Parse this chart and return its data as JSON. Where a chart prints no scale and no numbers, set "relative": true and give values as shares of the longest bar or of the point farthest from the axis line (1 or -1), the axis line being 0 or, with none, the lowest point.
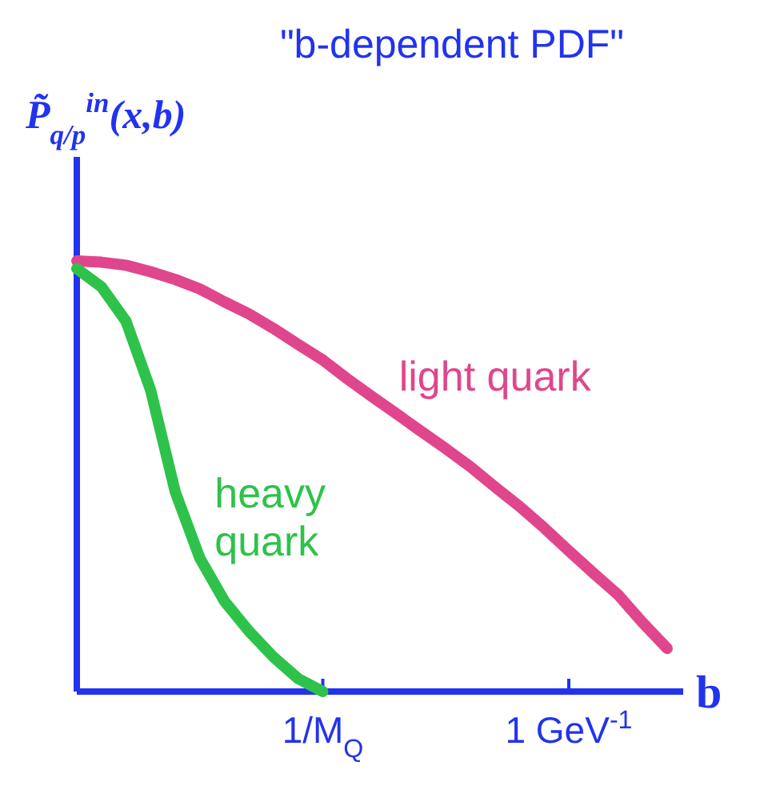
{
  "chart_data": {
    "type": "line",
    "title": "\"b-dependent PDF\"",
    "ylabel": "P̃$_{q/p}$$^{in}$(x,b)",
    "xlabel": "b",
    "relative": true,
    "marker": "none",
    "line_style": "solid",
    "categories": [
      null,
      null,
      null,
      null,
      null,
      null,
      null,
      null,
      null,
      null,
      "1/M$_{Q}$",
      null,
      null,
      null,
      null,
      null,
      null,
      null,
      null,
      null,
      "1 GeV$^{-1}$",
      null,
      null,
      null,
      null
    ],
    "series": [
      {
        "name": "light quark",
        "color": "#e0468c",
        "values": [
          1,
          0.997,
          0.99,
          0.975,
          0.957,
          0.935,
          0.905,
          0.877,
          0.843,
          0.806,
          0.77,
          0.726,
          0.685,
          0.645,
          0.604,
          0.564,
          0.522,
          0.475,
          0.43,
          0.38,
          0.327,
          0.275,
          0.225,
          0.16,
          0.1
        ]
      },
      {
        "name": "heavy quark",
        "color": "#2ec24a",
        "values": [
          0.982,
          0.94,
          0.86,
          0.7,
          0.464,
          0.31,
          0.21,
          0.14,
          0.08,
          0.03,
          0,
          null,
          null,
          null,
          null,
          null,
          null,
          null,
          null,
          null,
          null,
          null,
          null,
          null,
          null
        ]
      }
    ]
  }
}
